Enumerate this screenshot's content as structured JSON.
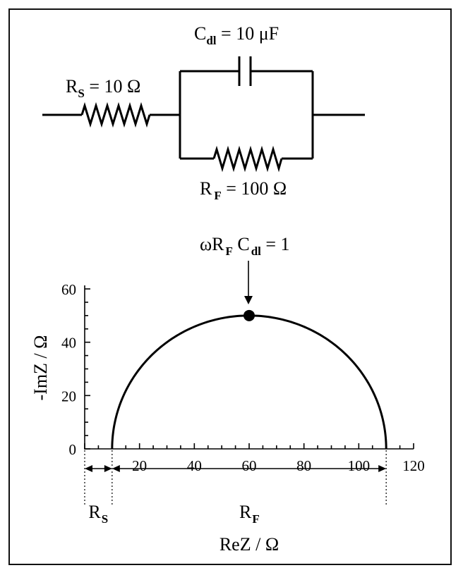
{
  "circuit": {
    "rs_label": {
      "main": "R",
      "sub": "S",
      "rest": " = 10 Ω"
    },
    "cdl_label": {
      "main": "C",
      "sub": "dl",
      "rest": " = 10 μF"
    },
    "rf_label": {
      "main": "R",
      "sub": "F",
      "rest": " = 100 Ω"
    }
  },
  "annotation": {
    "p1": "ωR",
    "s1": "F",
    "p2": " C",
    "s2": "dl",
    "p3": " = 1"
  },
  "chart_data": {
    "type": "line",
    "xlabel": "ReZ / Ω",
    "ylabel": "-ImZ / Ω",
    "xlim": [
      0,
      120
    ],
    "ylim": [
      0,
      60
    ],
    "x_ticks": [
      20,
      40,
      60,
      80,
      100,
      120
    ],
    "x_tick_labels": [
      "20",
      "40",
      "60",
      "80",
      "100",
      "120"
    ],
    "y_ticks": [
      0,
      20,
      40,
      60
    ],
    "y_tick_labels": [
      "0",
      "20",
      "40",
      "60"
    ],
    "semicircle": {
      "center_x": 60,
      "radius": 50,
      "x_start": 10,
      "x_end": 110
    },
    "apex_point": {
      "x": 60,
      "y": 50
    },
    "grid": false,
    "spans": [
      {
        "label_main": "R",
        "label_sub": "S",
        "from": 0,
        "to": 10
      },
      {
        "label_main": "R",
        "label_sub": "F",
        "from": 10,
        "to": 110
      }
    ]
  }
}
